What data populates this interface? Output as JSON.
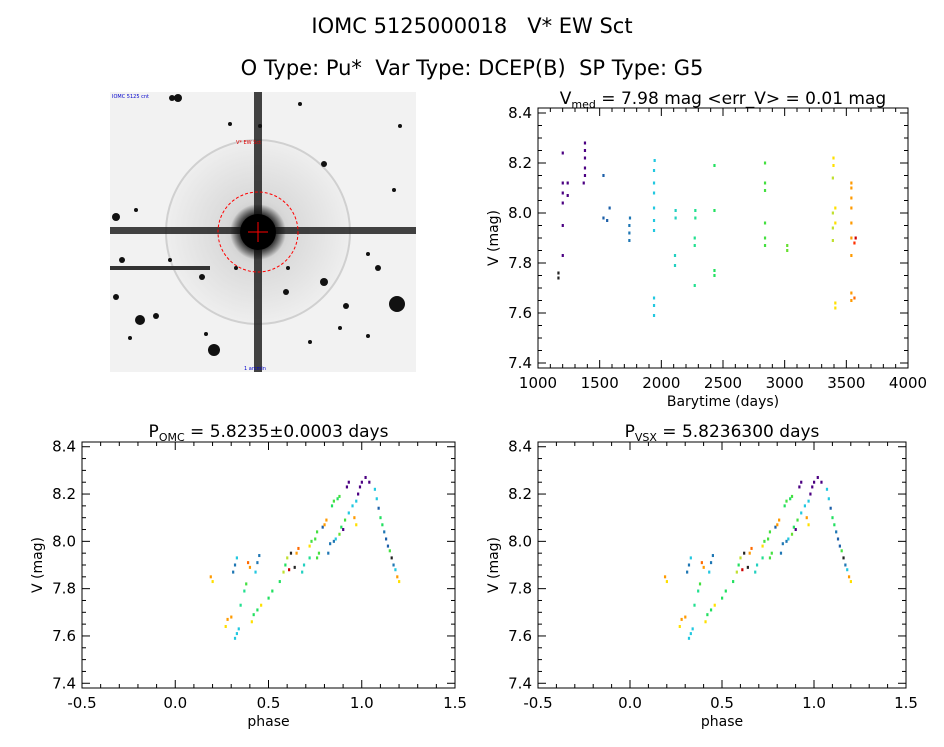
{
  "header": {
    "title": "IOMC 5125000018   V* EW Sct",
    "subtitle": "O Type: Pu*  Var Type: DCEP(B)  SP Type: G5"
  },
  "finder": {
    "label_top_left": "IOMC 5125 cnt",
    "label_target": "V* EW Sct",
    "label_bottom": "1 arcmin"
  },
  "chart_data": [
    {
      "type": "scatter",
      "title_main": "V",
      "title_sub": "med",
      "title_rest": " = 7.98 mag <err_V> = 0.01 mag",
      "xlabel": "Barytime (days)",
      "ylabel": "V (mag)",
      "xlim": [
        1000,
        4000
      ],
      "ylim": [
        8.42,
        7.38
      ],
      "y_reversed": true,
      "xticks": [
        1000,
        1500,
        2000,
        2500,
        3000,
        3500,
        4000
      ],
      "yticks": [
        7.4,
        7.6,
        7.8,
        8.0,
        8.2,
        8.4
      ],
      "points": [
        [
          1165,
          7.74,
          "#222222"
        ],
        [
          1165,
          7.76,
          "#222222"
        ],
        [
          1200,
          7.83,
          "#4b0082"
        ],
        [
          1200,
          7.95,
          "#4b0082"
        ],
        [
          1200,
          8.04,
          "#4b0082"
        ],
        [
          1200,
          8.08,
          "#4b0082"
        ],
        [
          1200,
          8.12,
          "#4b0082"
        ],
        [
          1200,
          8.24,
          "#4b0082"
        ],
        [
          1240,
          8.07,
          "#4b0082"
        ],
        [
          1240,
          8.12,
          "#4b0082"
        ],
        [
          1380,
          8.15,
          "#4b0082"
        ],
        [
          1380,
          8.18,
          "#4b0082"
        ],
        [
          1380,
          8.22,
          "#4b0082"
        ],
        [
          1380,
          8.25,
          "#4b0082"
        ],
        [
          1380,
          8.28,
          "#4b0082"
        ],
        [
          1370,
          8.12,
          "#4b0082"
        ],
        [
          1530,
          8.15,
          "#1c5fa8"
        ],
        [
          1530,
          7.98,
          "#1c5fa8"
        ],
        [
          1560,
          7.97,
          "#1c5fa8"
        ],
        [
          1580,
          8.02,
          "#1c5fa8"
        ],
        [
          1740,
          7.89,
          "#1f77b4"
        ],
        [
          1740,
          7.92,
          "#1f77b4"
        ],
        [
          1740,
          7.95,
          "#1f77b4"
        ],
        [
          1745,
          7.98,
          "#1f77b4"
        ],
        [
          1940,
          7.59,
          "#22c8e0"
        ],
        [
          1940,
          7.63,
          "#22c8e0"
        ],
        [
          1940,
          7.66,
          "#22c8e0"
        ],
        [
          1940,
          7.93,
          "#22c8e0"
        ],
        [
          1940,
          7.97,
          "#22c8e0"
        ],
        [
          1940,
          8.02,
          "#22c8e0"
        ],
        [
          1940,
          8.08,
          "#22c8e0"
        ],
        [
          1940,
          8.12,
          "#22c8e0"
        ],
        [
          1940,
          8.17,
          "#22c8e0"
        ],
        [
          1945,
          8.21,
          "#22c8e0"
        ],
        [
          2110,
          7.79,
          "#22d0c0"
        ],
        [
          2110,
          7.83,
          "#22d0c0"
        ],
        [
          2115,
          7.98,
          "#22d0c0"
        ],
        [
          2115,
          8.01,
          "#22d0c0"
        ],
        [
          2270,
          7.71,
          "#22e090"
        ],
        [
          2270,
          7.87,
          "#22e090"
        ],
        [
          2270,
          7.9,
          "#22e090"
        ],
        [
          2275,
          7.98,
          "#22e090"
        ],
        [
          2275,
          8.01,
          "#22e090"
        ],
        [
          2430,
          7.75,
          "#22e060"
        ],
        [
          2430,
          7.77,
          "#22e060"
        ],
        [
          2430,
          8.01,
          "#22e060"
        ],
        [
          2430,
          8.19,
          "#22e060"
        ],
        [
          2840,
          7.87,
          "#44e040"
        ],
        [
          2840,
          7.9,
          "#44e040"
        ],
        [
          2840,
          7.96,
          "#44e040"
        ],
        [
          2840,
          8.09,
          "#44e040"
        ],
        [
          2840,
          8.12,
          "#44e040"
        ],
        [
          2840,
          8.2,
          "#44e040"
        ],
        [
          3020,
          7.85,
          "#66e030"
        ],
        [
          3020,
          7.87,
          "#66e030"
        ],
        [
          3390,
          7.89,
          "#c0e030"
        ],
        [
          3390,
          7.94,
          "#c0e030"
        ],
        [
          3390,
          8.0,
          "#c0e030"
        ],
        [
          3390,
          8.14,
          "#c0e030"
        ],
        [
          3395,
          8.19,
          "#ffe000"
        ],
        [
          3395,
          8.22,
          "#ffe000"
        ],
        [
          3410,
          7.62,
          "#ffe000"
        ],
        [
          3410,
          7.64,
          "#ffe000"
        ],
        [
          3410,
          7.96,
          "#ffe000"
        ],
        [
          3410,
          8.02,
          "#ffe000"
        ],
        [
          3540,
          7.65,
          "#ff9a00"
        ],
        [
          3540,
          7.68,
          "#ff9a00"
        ],
        [
          3540,
          7.83,
          "#ff9a00"
        ],
        [
          3540,
          7.9,
          "#ff9a00"
        ],
        [
          3540,
          7.96,
          "#ff9a00"
        ],
        [
          3540,
          8.02,
          "#ff9a00"
        ],
        [
          3540,
          8.06,
          "#ff9a00"
        ],
        [
          3540,
          8.1,
          "#ff9a00"
        ],
        [
          3540,
          8.12,
          "#ff9a00"
        ],
        [
          3565,
          7.66,
          "#ff6a00"
        ],
        [
          3565,
          7.88,
          "#ff3000"
        ],
        [
          3575,
          7.9,
          "#cc0000"
        ]
      ]
    },
    {
      "type": "scatter",
      "title_main": "P",
      "title_sub": "OMC",
      "title_rest": " = 5.8235±0.0003 days",
      "xlabel": "phase",
      "ylabel": "V (mag)",
      "xlim": [
        -0.5,
        1.5
      ],
      "ylim": [
        8.42,
        7.38
      ],
      "y_reversed": true,
      "xticks": [
        -0.5,
        0.0,
        0.5,
        1.0,
        1.5
      ],
      "yticks": [
        7.4,
        7.6,
        7.8,
        8.0,
        8.2,
        8.4
      ],
      "points": [
        [
          0.32,
          7.59,
          "#22c8e0"
        ],
        [
          0.33,
          7.61,
          "#22c8e0"
        ],
        [
          0.34,
          7.63,
          "#22c8e0"
        ],
        [
          0.27,
          7.64,
          "#ffe000"
        ],
        [
          0.28,
          7.67,
          "#ff9a00"
        ],
        [
          0.3,
          7.68,
          "#ff9a00"
        ],
        [
          0.41,
          7.66,
          "#ffe000"
        ],
        [
          0.42,
          7.69,
          "#22e060"
        ],
        [
          0.44,
          7.71,
          "#22e060"
        ],
        [
          0.46,
          7.73,
          "#ffe000"
        ],
        [
          0.35,
          7.73,
          "#22e090"
        ],
        [
          0.37,
          7.79,
          "#22e090"
        ],
        [
          0.38,
          7.82,
          "#44e040"
        ],
        [
          0.5,
          7.76,
          "#22e060"
        ],
        [
          0.52,
          7.79,
          "#22e060"
        ],
        [
          0.56,
          7.83,
          "#22e060"
        ],
        [
          0.2,
          7.83,
          "#ffe000"
        ],
        [
          0.19,
          7.85,
          "#ff9a00"
        ],
        [
          0.31,
          7.87,
          "#1f77b4"
        ],
        [
          0.32,
          7.9,
          "#1f77b4"
        ],
        [
          0.33,
          7.93,
          "#22c8e0"
        ],
        [
          0.43,
          7.87,
          "#22c8e0"
        ],
        [
          0.44,
          7.91,
          "#1f77b4"
        ],
        [
          0.45,
          7.94,
          "#1f77b4"
        ],
        [
          0.58,
          7.87,
          "#c0e030"
        ],
        [
          0.59,
          7.9,
          "#22e060"
        ],
        [
          0.6,
          7.93,
          "#c0e030"
        ],
        [
          0.62,
          7.95,
          "#222222"
        ],
        [
          0.4,
          7.89,
          "#ff9a00"
        ],
        [
          0.39,
          7.91,
          "#ff6a00"
        ],
        [
          0.68,
          7.87,
          "#22d0c0"
        ],
        [
          0.69,
          7.9,
          "#22d0c0"
        ],
        [
          0.72,
          7.93,
          "#22e090"
        ],
        [
          0.64,
          7.89,
          "#222222"
        ],
        [
          0.61,
          7.88,
          "#cc0000"
        ],
        [
          0.76,
          7.93,
          "#44e040"
        ],
        [
          0.77,
          7.95,
          "#44e040"
        ],
        [
          0.82,
          7.95,
          "#1f77b4"
        ],
        [
          0.83,
          7.99,
          "#1f77b4"
        ],
        [
          0.86,
          8.01,
          "#22c8e0"
        ],
        [
          0.88,
          8.03,
          "#66e030"
        ],
        [
          0.89,
          8.06,
          "#22e060"
        ],
        [
          0.91,
          8.09,
          "#44e040"
        ],
        [
          0.93,
          8.12,
          "#22c8e0"
        ],
        [
          0.95,
          8.15,
          "#22c8e0"
        ],
        [
          0.97,
          8.17,
          "#22c8e0"
        ],
        [
          0.98,
          8.2,
          "#4b0082"
        ],
        [
          0.99,
          8.23,
          "#4b0082"
        ],
        [
          1.0,
          8.25,
          "#4b0082"
        ],
        [
          1.02,
          8.27,
          "#4b0082"
        ],
        [
          1.04,
          8.25,
          "#4b0082"
        ],
        [
          1.07,
          8.22,
          "#22c8e0"
        ],
        [
          1.08,
          8.18,
          "#22c8e0"
        ],
        [
          1.09,
          8.14,
          "#1c5fa8"
        ],
        [
          1.1,
          8.1,
          "#22e060"
        ],
        [
          1.11,
          8.07,
          "#22e060"
        ],
        [
          1.12,
          8.04,
          "#1f77b4"
        ],
        [
          1.13,
          8.01,
          "#1c5fa8"
        ],
        [
          1.14,
          7.98,
          "#1c5fa8"
        ],
        [
          1.15,
          7.96,
          "#44e040"
        ],
        [
          1.16,
          7.93,
          "#222222"
        ],
        [
          1.17,
          7.9,
          "#1f77b4"
        ],
        [
          1.18,
          7.88,
          "#22c8e0"
        ],
        [
          1.19,
          7.85,
          "#ff9a00"
        ],
        [
          1.2,
          7.83,
          "#ffe000"
        ],
        [
          0.72,
          7.98,
          "#ffe000"
        ],
        [
          0.73,
          8.0,
          "#44e040"
        ],
        [
          0.65,
          7.95,
          "#ff9a00"
        ],
        [
          0.66,
          7.97,
          "#ff6a00"
        ],
        [
          0.9,
          8.05,
          "#4b0082"
        ],
        [
          0.85,
          8.0,
          "#1f77b4"
        ],
        [
          0.75,
          8.01,
          "#44e040"
        ],
        [
          0.76,
          8.04,
          "#44e040"
        ],
        [
          0.79,
          8.06,
          "#1c5fa8"
        ],
        [
          0.8,
          8.07,
          "#ff9a00"
        ],
        [
          0.81,
          8.09,
          "#ff9a00"
        ],
        [
          0.84,
          8.15,
          "#22e060"
        ],
        [
          0.85,
          8.17,
          "#44e040"
        ],
        [
          0.87,
          8.18,
          "#22e060"
        ],
        [
          0.88,
          8.19,
          "#44e040"
        ],
        [
          0.92,
          8.23,
          "#4b0082"
        ],
        [
          0.93,
          8.25,
          "#4b0082"
        ],
        [
          0.96,
          8.1,
          "#ff9a00"
        ],
        [
          0.97,
          8.07,
          "#ffe000"
        ]
      ]
    },
    {
      "type": "scatter",
      "title_main": "P",
      "title_sub": "VSX",
      "title_rest": " = 5.8236300 days",
      "xlabel": "phase",
      "ylabel": "V (mag)",
      "xlim": [
        -0.5,
        1.5
      ],
      "ylim": [
        8.42,
        7.38
      ],
      "y_reversed": true,
      "xticks": [
        -0.5,
        0.0,
        0.5,
        1.0,
        1.5
      ],
      "yticks": [
        7.4,
        7.6,
        7.8,
        8.0,
        8.2,
        8.4
      ],
      "points_from_chart": 1
    }
  ],
  "colors": {
    "axis": "#000000",
    "finder_circle": "#ff0000",
    "finder_label_blue": "#0000cc",
    "finder_label_red": "#dd0000"
  }
}
